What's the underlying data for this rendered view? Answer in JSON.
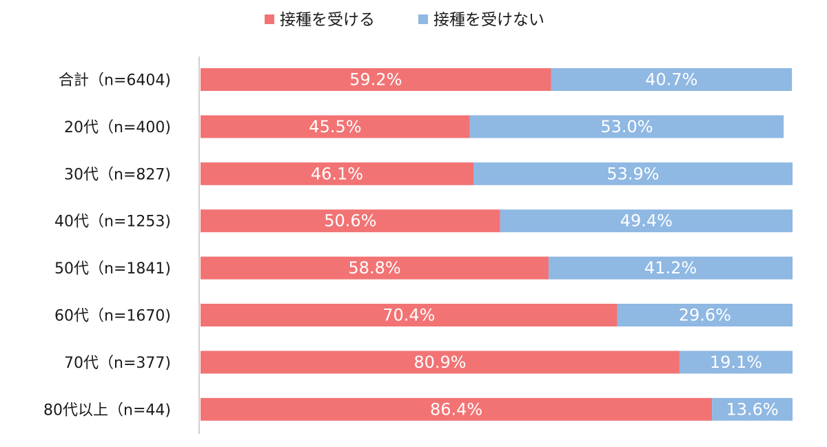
{
  "chart_data": {
    "type": "bar",
    "orientation": "horizontal",
    "stacked": true,
    "title": "",
    "xlabel": "",
    "ylabel": "",
    "xlim": [
      0,
      100
    ],
    "grid": false,
    "legend_position": "top",
    "value_unit": "%",
    "categories": [
      "合計（n=6404)",
      "20代（n=400)",
      "30代（n=827)",
      "40代（n=1253)",
      "50代（n=1841)",
      "60代（n=1670)",
      "70代（n=377)",
      "80代以上（n=44)"
    ],
    "series": [
      {
        "name": "接種を受ける",
        "color": "#f27374",
        "values": [
          59.2,
          45.5,
          46.1,
          50.6,
          58.8,
          70.4,
          80.9,
          86.4
        ],
        "labels": [
          "59.2%",
          "45.5%",
          "46.1%",
          "50.6%",
          "58.8%",
          "70.4%",
          "80.9%",
          "86.4%"
        ]
      },
      {
        "name": "接種を受けない",
        "color": "#8fb8e3",
        "values": [
          40.7,
          53.0,
          53.9,
          49.4,
          41.2,
          29.6,
          19.1,
          13.6
        ],
        "labels": [
          "40.7%",
          "53.0%",
          "53.9%",
          "49.4%",
          "41.2%",
          "29.6%",
          "19.1%",
          "13.6%"
        ]
      }
    ],
    "axis_color": "#bfbfbf"
  }
}
